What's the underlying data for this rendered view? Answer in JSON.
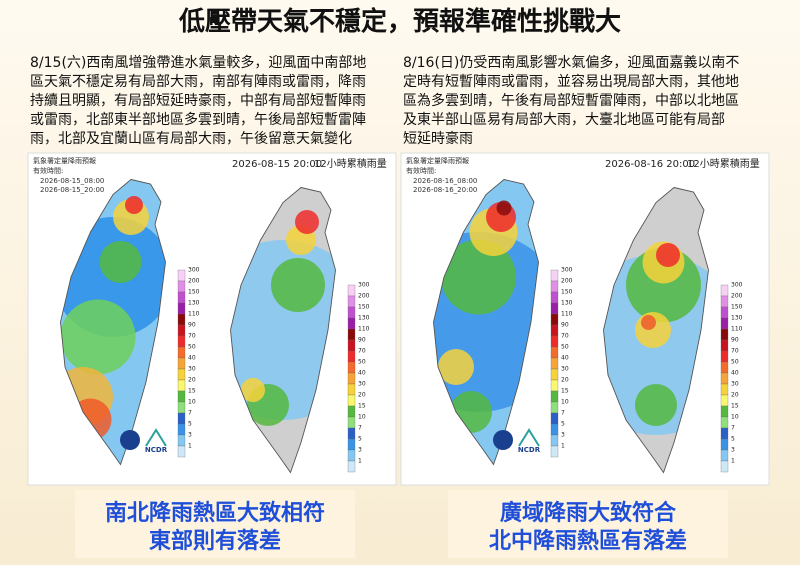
{
  "title": "低壓帶天氣不穩定，預報準確性挑戰大",
  "paragraphs": [
    [
      "8/15(六)西南風增強帶進水氣量較多，迎風面中南部地",
      "區天氣不穩定易有局部大雨，南部有陣雨或雷雨，降雨",
      "持續且明顯，有局部短延時豪雨，中部有局部短暫陣雨",
      "或雷雨，北部東半部地區多雲到晴，午後局部短暫雷陣",
      "雨，北部及宜蘭山區有局部大雨，午後留意天氣變化"
    ],
    [
      "8/16(日)仍受西南風影響水氣偏多，迎風面嘉義以南不",
      "定時有短暫陣雨或雷雨，並容易出現局部大雨，其他地",
      "區為多雲到晴，午後有局部短暫雷陣雨，中部以北地區",
      "及東半部山區易有局部大雨，大臺北地區可能有局部",
      "短延時豪雨"
    ]
  ],
  "panels": [
    {
      "source": "氣象署定量降雨預報",
      "valid_label": "有效時間:",
      "valid_times": [
        "2026-08-15_08:00",
        "2026-08-15_20:00"
      ],
      "map_time": "2026-08-15 20:00",
      "map_label": "12小時累積雨量",
      "logo_text": "NCDR"
    },
    {
      "source": "氣象署定量降雨預報",
      "valid_label": "有效時間:",
      "valid_times": [
        "2026-08-16_08:00",
        "2026-08-16_20:00"
      ],
      "map_time": "2026-08-16 20:00",
      "map_label": "12小時累積雨量",
      "logo_text": "NCDR"
    }
  ],
  "legend_ticks": [
    300,
    200,
    150,
    130,
    110,
    90,
    70,
    50,
    40,
    30,
    20,
    15,
    10,
    7,
    5,
    3,
    1
  ],
  "captions": [
    [
      "南北降雨熱區大致相符",
      "東部則有落差"
    ],
    [
      "廣域降雨大致符合",
      "北中降雨熱區有落差"
    ]
  ]
}
